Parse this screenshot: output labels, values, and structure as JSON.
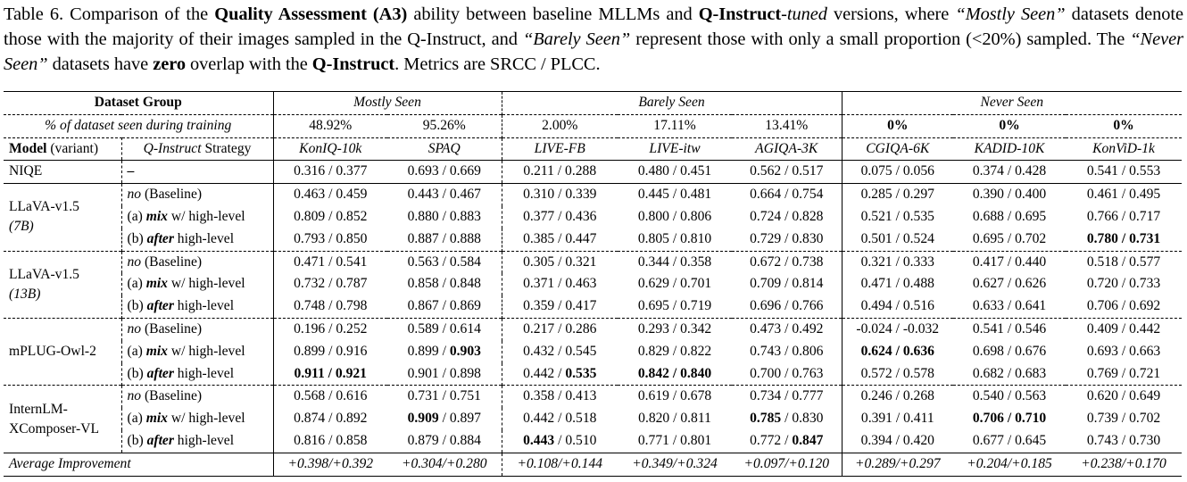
{
  "caption": {
    "p1": "Table 6. Comparison of the ",
    "b1": "Quality Assessment (A3)",
    "p2": " ability between baseline MLLMs and ",
    "b2": "Q-Instruct",
    "i1": "-tuned",
    "p3": " versions, where ",
    "i2": "“Mostly Seen”",
    "p4": " datasets denote those with the majority of their images sampled in the Q-Instruct, and ",
    "i3": "“Barely Seen”",
    "p5": " represent those with only a small proportion (<20%) sampled. The ",
    "i4": "“Never Seen”",
    "p6": " datasets have ",
    "b3": "zero",
    "p7": " overlap with the ",
    "b4": "Q-Instruct",
    "p8": ". Metrics are SRCC / PLCC."
  },
  "header": {
    "dataset_group": "Dataset Group",
    "groups": [
      "Mostly Seen",
      "Barely Seen",
      "Never Seen"
    ],
    "pct_label": "% of dataset seen during training",
    "pcts": [
      "48.92%",
      "95.26%",
      "2.00%",
      "17.11%",
      "13.41%",
      "0%",
      "0%",
      "0%"
    ],
    "model_label_b": "Model",
    "model_label_r": " (variant)",
    "strategy_label_i": "Q-Instruct",
    "strategy_label_r": " Strategy",
    "datasets": [
      "KonIQ-10k",
      "SPAQ",
      "LIVE-FB",
      "LIVE-itw",
      "AGIQA-3K",
      "CGIQA-6K",
      "KADID-10K",
      "KonViD-1k"
    ]
  },
  "strategies": {
    "no_i": "no",
    "no_r": " (Baseline)",
    "a_pre": "(a) ",
    "a_b": "mix",
    "a_post": " w/ high-level",
    "b_pre": "(b) ",
    "b_b": "after",
    "b_post": " high-level"
  },
  "niqe": {
    "name": "NIQE",
    "strategy": "–",
    "values": [
      "0.316 / 0.377",
      "0.693 / 0.669",
      "0.211 / 0.288",
      "0.480 / 0.451",
      "0.562 / 0.517",
      "0.075 / 0.056",
      "0.374 / 0.428",
      "0.541 / 0.553"
    ]
  },
  "models": [
    {
      "name": "LLaVA-v1.5",
      "variant": "(7B)",
      "rows": [
        [
          "0.463 / 0.459",
          "0.443 / 0.467",
          "0.310 / 0.339",
          "0.445 / 0.481",
          "0.664 / 0.754",
          "0.285 / 0.297",
          "0.390 / 0.400",
          "0.461 / 0.495"
        ],
        [
          "0.809 / 0.852",
          "0.880 / 0.883",
          "0.377 / 0.436",
          "0.800 / 0.806",
          "0.724 / 0.828",
          "0.521 / 0.535",
          "0.688 / 0.695",
          "0.766 / 0.717"
        ],
        [
          "0.793 / 0.850",
          "0.887 / 0.888",
          "0.385 / 0.447",
          "0.805 / 0.810",
          "0.729 / 0.830",
          "0.501 / 0.524",
          "0.695 / 0.702",
          "0.780 / 0.731"
        ]
      ]
    },
    {
      "name": "LLaVA-v1.5",
      "variant": "(13B)",
      "rows": [
        [
          "0.471 / 0.541",
          "0.563 / 0.584",
          "0.305 / 0.321",
          "0.344 / 0.358",
          "0.672 / 0.738",
          "0.321 / 0.333",
          "0.417 / 0.440",
          "0.518 / 0.577"
        ],
        [
          "0.732 / 0.787",
          "0.858 / 0.848",
          "0.371 / 0.463",
          "0.629 / 0.701",
          "0.709 / 0.814",
          "0.471 / 0.488",
          "0.627 / 0.626",
          "0.720 / 0.733"
        ],
        [
          "0.748 / 0.798",
          "0.867 / 0.869",
          "0.359 / 0.417",
          "0.695 / 0.719",
          "0.696 / 0.766",
          "0.494 / 0.516",
          "0.633 / 0.641",
          "0.706 / 0.692"
        ]
      ]
    },
    {
      "name": "mPLUG-Owl-2",
      "variant": "",
      "rows": [
        [
          "0.196 / 0.252",
          "0.589 / 0.614",
          "0.217 / 0.286",
          "0.293 / 0.342",
          "0.473 / 0.492",
          "-0.024 / -0.032",
          "0.541 / 0.546",
          "0.409 / 0.442"
        ],
        [
          "0.899 / 0.916",
          "0.899 / 0.903",
          "0.432 / 0.545",
          "0.829 / 0.822",
          "0.743 / 0.806",
          "0.624 / 0.636",
          "0.698 / 0.676",
          "0.693 / 0.663"
        ],
        [
          "0.911 / 0.921",
          "0.901 / 0.898",
          "0.442 / 0.535",
          "0.842 / 0.840",
          "0.700 / 0.763",
          "0.572 / 0.578",
          "0.682 / 0.683",
          "0.769 / 0.721"
        ]
      ]
    },
    {
      "name": "InternLM-XComposer-VL",
      "variant": "",
      "rows": [
        [
          "0.568 / 0.616",
          "0.731 / 0.751",
          "0.358 / 0.413",
          "0.619 / 0.678",
          "0.734 / 0.777",
          "0.246 / 0.268",
          "0.540 / 0.563",
          "0.620 / 0.649"
        ],
        [
          "0.874 / 0.892",
          "0.909 / 0.897",
          "0.442 / 0.518",
          "0.820 / 0.811",
          "0.785 / 0.830",
          "0.391 / 0.411",
          "0.706 / 0.710",
          "0.739 / 0.702"
        ],
        [
          "0.816 / 0.858",
          "0.879 / 0.884",
          "0.443 / 0.510",
          "0.771 / 0.801",
          "0.772 / 0.847",
          "0.394 / 0.420",
          "0.677 / 0.645",
          "0.743 / 0.730"
        ]
      ]
    }
  ],
  "average": {
    "label": "Average Improvement",
    "values": [
      "+0.398/+0.392",
      "+0.304/+0.280",
      "+0.108/+0.144",
      "+0.349/+0.324",
      "+0.097/+0.120",
      "+0.289/+0.297",
      "+0.204/+0.185",
      "+0.238/+0.170"
    ]
  }
}
